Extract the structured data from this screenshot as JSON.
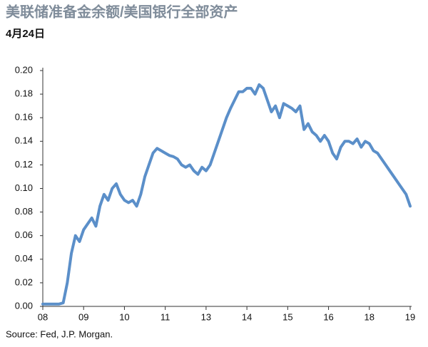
{
  "chart_data": {
    "type": "line",
    "title": "美联储准备金余额/美国银行全部资产",
    "subtitle": "4月24日",
    "source": "Source: Fed, J.P. Morgan.",
    "categories": [
      "08",
      null,
      null,
      null,
      null,
      null,
      null,
      null,
      null,
      null,
      "09",
      null,
      null,
      null,
      null,
      null,
      null,
      null,
      null,
      null,
      "10",
      null,
      null,
      null,
      null,
      null,
      null,
      null,
      null,
      null,
      "11",
      null,
      null,
      null,
      null,
      null,
      null,
      null,
      null,
      null,
      "13",
      null,
      null,
      null,
      null,
      null,
      null,
      null,
      null,
      null,
      "14",
      null,
      null,
      null,
      null,
      null,
      null,
      null,
      null,
      null,
      "15",
      null,
      null,
      null,
      null,
      null,
      null,
      null,
      null,
      null,
      "16",
      null,
      null,
      null,
      null,
      null,
      null,
      null,
      null,
      null,
      "18",
      null,
      null,
      null,
      null,
      null,
      null,
      null,
      null,
      null,
      "19"
    ],
    "values": [
      0.002,
      0.002,
      0.002,
      0.002,
      0.002,
      0.003,
      0.02,
      0.045,
      0.06,
      0.055,
      0.065,
      0.07,
      0.075,
      0.068,
      0.085,
      0.095,
      0.09,
      0.1,
      0.104,
      0.095,
      0.09,
      0.088,
      0.09,
      0.085,
      0.095,
      0.11,
      0.12,
      0.13,
      0.134,
      0.132,
      0.13,
      0.128,
      0.127,
      0.125,
      0.12,
      0.118,
      0.12,
      0.115,
      0.112,
      0.118,
      0.115,
      0.12,
      0.13,
      0.14,
      0.15,
      0.16,
      0.168,
      0.175,
      0.182,
      0.182,
      0.185,
      0.185,
      0.18,
      0.188,
      0.185,
      0.175,
      0.165,
      0.17,
      0.16,
      0.172,
      0.17,
      0.168,
      0.165,
      0.17,
      0.15,
      0.155,
      0.148,
      0.145,
      0.14,
      0.145,
      0.14,
      0.13,
      0.125,
      0.135,
      0.14,
      0.14,
      0.138,
      0.142,
      0.135,
      0.14,
      0.138,
      0.132,
      0.13,
      0.125,
      0.12,
      0.115,
      0.11,
      0.105,
      0.1,
      0.095,
      0.085
    ],
    "color": "#5b8fc9",
    "ylim": [
      0,
      0.2
    ],
    "yticks": [
      {
        "value": 0,
        "label": "0.00"
      },
      {
        "value": 0.02,
        "label": "0.02"
      },
      {
        "value": 0.04,
        "label": "0.04"
      },
      {
        "value": 0.06,
        "label": "0.06"
      },
      {
        "value": 0.08,
        "label": "0.08"
      },
      {
        "value": 0.1,
        "label": "0.10"
      },
      {
        "value": 0.12,
        "label": "0.12"
      },
      {
        "value": 0.14,
        "label": "0.14"
      },
      {
        "value": 0.16,
        "label": "0.16"
      },
      {
        "value": 0.18,
        "label": "0.18"
      },
      {
        "value": 0.2,
        "label": "0.20"
      }
    ],
    "grid": false
  }
}
